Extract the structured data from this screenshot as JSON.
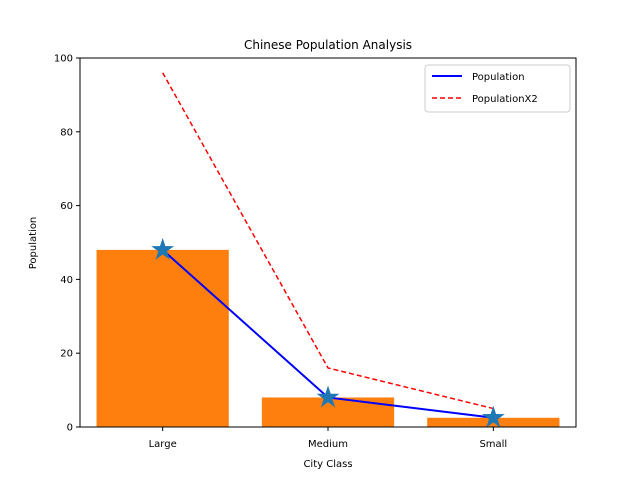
{
  "chart_data": {
    "type": "bar",
    "title": "Chinese Population Analysis",
    "xlabel": "City Class",
    "ylabel": "Population",
    "ylim": [
      0,
      100
    ],
    "yticks": [
      0,
      20,
      40,
      60,
      80,
      100
    ],
    "categories": [
      "Large",
      "Medium",
      "Small"
    ],
    "bars": {
      "values": [
        48,
        8,
        2.5
      ],
      "color": "#ff7f0e"
    },
    "series": [
      {
        "name": "Population",
        "type": "line",
        "values": [
          48,
          8,
          2.5
        ],
        "color": "#0000ff",
        "style": "solid",
        "marker": "star"
      },
      {
        "name": "PopulationX2",
        "type": "line",
        "values": [
          96,
          16,
          5
        ],
        "color": "#ff0000",
        "style": "dashed"
      }
    ],
    "marker_color": "#1f77b4",
    "legend_position": "top-right",
    "grid": false
  }
}
